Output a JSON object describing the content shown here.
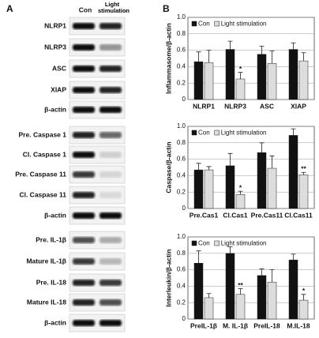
{
  "panel_a": {
    "label": "A",
    "columns": [
      "Con",
      "Light stimulation"
    ],
    "rows": [
      "NLRP1",
      "NLRP3",
      "ASC",
      "XIAP",
      "β-actin",
      "Pre. Caspase 1",
      "Cl. Caspase 1",
      "Pre. Caspase 11",
      "Cl. Caspase 11",
      "β-actin",
      "Pre. IL-1β",
      "Mature IL-1β",
      "Pre. IL-18",
      "Mature IL-18",
      "β-actin"
    ]
  },
  "panel_b": {
    "label": "B"
  },
  "chart_data": [
    {
      "type": "bar",
      "ylabel": "Inflammasome/β-actin",
      "categories": [
        "NLRP1",
        "NLRP3",
        "ASC",
        "XIAP"
      ],
      "series": [
        {
          "name": "Con",
          "color": "#111111",
          "values": [
            0.46,
            0.61,
            0.55,
            0.61
          ],
          "errors": [
            0.12,
            0.1,
            0.1,
            0.08
          ]
        },
        {
          "name": "Light stimulation",
          "color": "#dddddd",
          "values": [
            0.45,
            0.25,
            0.44,
            0.47
          ],
          "errors": [
            0.15,
            0.08,
            0.15,
            0.1
          ]
        }
      ],
      "ylim": [
        0,
        1
      ],
      "yticks": [
        0,
        0.2,
        0.4,
        0.6,
        0.8,
        {
          "value": 1,
          "label": "1.0"
        }
      ],
      "grid": true,
      "legend": "upper left",
      "annotations": [
        {
          "text": "*",
          "x": "NLRP3",
          "series": "Light stimulation"
        }
      ]
    },
    {
      "type": "bar",
      "ylabel": "Caspase/β-actin",
      "categories": [
        "Pre.Cas1",
        "Cl.Cas1",
        "Pre.Cas11",
        "Cl.Cas11"
      ],
      "series": [
        {
          "name": "Con",
          "color": "#111111",
          "values": [
            0.47,
            0.52,
            0.68,
            0.89
          ],
          "errors": [
            0.08,
            0.15,
            0.12,
            0.08
          ]
        },
        {
          "name": "Light stimulation",
          "color": "#dddddd",
          "values": [
            0.47,
            0.17,
            0.49,
            0.41
          ],
          "errors": [
            0.04,
            0.04,
            0.15,
            0.03
          ]
        }
      ],
      "ylim": [
        0,
        1
      ],
      "yticks": [
        0,
        0.2,
        0.4,
        0.6,
        0.8,
        {
          "value": 1,
          "label": "1.0"
        }
      ],
      "grid": true,
      "legend": "upper left",
      "annotations": [
        {
          "text": "*",
          "x": "Cl.Cas1",
          "series": "Light stimulation"
        },
        {
          "text": "**",
          "x": "Cl.Cas11",
          "series": "Light stimulation"
        }
      ]
    },
    {
      "type": "bar",
      "ylabel": "Interleukin/β-actin",
      "categories": [
        "PreIL-1β",
        "M. IL-1β",
        "PreIL-18",
        "M.IL-18"
      ],
      "series": [
        {
          "name": "Con",
          "color": "#111111",
          "values": [
            0.68,
            0.8,
            0.53,
            0.72
          ],
          "errors": [
            0.15,
            0.08,
            0.08,
            0.07
          ]
        },
        {
          "name": "Light stimulation",
          "color": "#dddddd",
          "values": [
            0.26,
            0.3,
            0.45,
            0.23
          ],
          "errors": [
            0.05,
            0.07,
            0.15,
            0.07
          ]
        }
      ],
      "ylim": [
        0,
        1
      ],
      "yticks": [
        0,
        0.2,
        0.4,
        0.6,
        0.8,
        {
          "value": 1,
          "label": "1.0"
        }
      ],
      "grid": true,
      "legend": "upper left",
      "annotations": [
        {
          "text": "**",
          "x": "M. IL-1β",
          "series": "Light stimulation"
        },
        {
          "text": "*",
          "x": "M.IL-18",
          "series": "Light stimulation"
        }
      ]
    }
  ]
}
